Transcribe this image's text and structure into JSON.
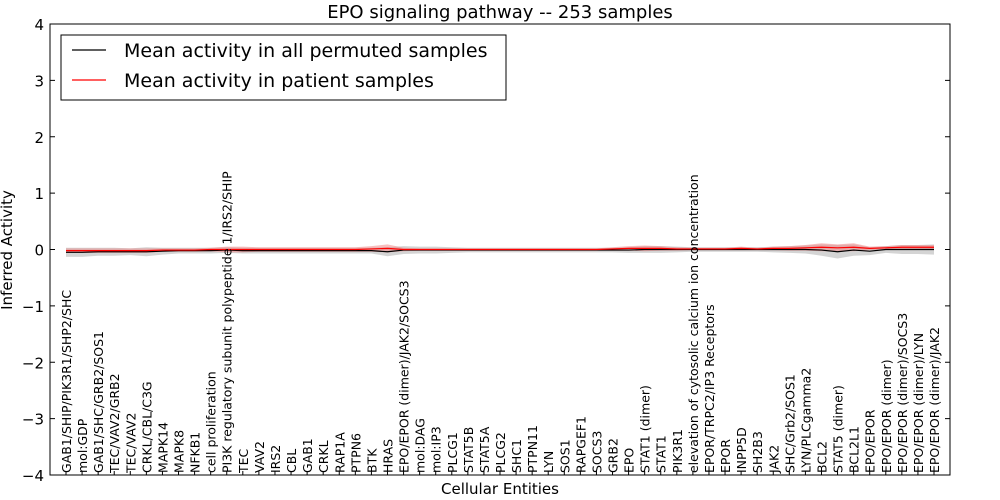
{
  "chart_data": {
    "type": "line",
    "title": "EPO signaling pathway -- 253 samples",
    "xlabel": "Cellular Entities",
    "ylabel": "Inferred Activity",
    "ylim": [
      -4,
      4
    ],
    "yticks": [
      -4,
      -3,
      -2,
      -1,
      0,
      1,
      2,
      3,
      4
    ],
    "ytick_labels": [
      "−4",
      "−3",
      "−2",
      "−1",
      "0",
      "1",
      "2",
      "3",
      "4"
    ],
    "legend_position": "top-left",
    "categories": [
      "GAB1/SHIP/PIK3R1/SHP2/SHC",
      "mol:GDP",
      "GAB1/SHC/GRB2/SOS1",
      "TEC/VAV2/GRB2",
      "TEC/VAV2",
      "CRKL/CBL/C3G",
      "MAPK14",
      "MAPK8",
      "NFKB1",
      "cell proliferation",
      "PI3K regulatory subunit polypeptide 1/IRS2/SHIP",
      "TEC",
      "VAV2",
      "IRS2",
      "CBL",
      "GAB1",
      "CRKL",
      "RAP1A",
      "PTPN6",
      "BTK",
      "HRAS",
      "EPO/EPOR (dimer)/JAK2/SOCS3",
      "mol:DAG",
      "mol:IP3",
      "PLCG1",
      "STAT5B",
      "STAT5A",
      "PLCG2",
      "SHC1",
      "PTPN11",
      "LYN",
      "SOS1",
      "RAPGEF1",
      "SOCS3",
      "GRB2",
      "EPO",
      "STAT1 (dimer)",
      "STAT1",
      "PIK3R1",
      "elevation of cytosolic calcium ion concentration",
      "EPOR/TRPC2/IP3 Receptors",
      "EPOR",
      "INPP5D",
      "SH2B3",
      "JAK2",
      "SHC/Grb2/SOS1",
      "LYN/PLCgamma2",
      "BCL2",
      "STAT5 (dimer)",
      "BCL2L1",
      "EPO/EPOR",
      "EPO/EPOR (dimer)",
      "EPO/EPOR (dimer)/SOCS3",
      "EPO/EPOR (dimer)/LYN",
      "EPO/EPOR (dimer)/JAK2"
    ],
    "series": [
      {
        "name": "Mean activity in all permuted samples",
        "color": "#000000",
        "band_color": "#b0b0b0",
        "values": [
          -0.05,
          -0.05,
          -0.04,
          -0.04,
          -0.04,
          -0.04,
          -0.03,
          -0.02,
          -0.02,
          -0.02,
          -0.01,
          -0.02,
          -0.02,
          -0.02,
          -0.02,
          -0.02,
          -0.02,
          -0.02,
          -0.02,
          -0.02,
          -0.04,
          -0.01,
          -0.01,
          -0.01,
          -0.01,
          -0.01,
          -0.01,
          -0.01,
          -0.01,
          -0.01,
          -0.01,
          -0.01,
          -0.01,
          -0.01,
          -0.01,
          -0.01,
          0.0,
          0.0,
          0.0,
          0.0,
          0.0,
          0.0,
          0.0,
          0.0,
          0.0,
          0.0,
          0.0,
          -0.01,
          -0.04,
          -0.01,
          -0.03,
          0.0,
          0.0,
          0.0,
          0.0
        ],
        "spread": [
          0.08,
          0.08,
          0.07,
          0.07,
          0.06,
          0.08,
          0.06,
          0.05,
          0.05,
          0.05,
          0.05,
          0.05,
          0.05,
          0.05,
          0.05,
          0.05,
          0.05,
          0.05,
          0.05,
          0.05,
          0.08,
          0.07,
          0.06,
          0.06,
          0.05,
          0.04,
          0.04,
          0.04,
          0.04,
          0.04,
          0.04,
          0.04,
          0.04,
          0.04,
          0.04,
          0.05,
          0.06,
          0.06,
          0.05,
          0.04,
          0.04,
          0.04,
          0.04,
          0.04,
          0.05,
          0.06,
          0.07,
          0.1,
          0.12,
          0.1,
          0.07,
          0.06,
          0.08,
          0.08,
          0.09
        ]
      },
      {
        "name": "Mean activity in patient samples",
        "color": "#ff0000",
        "band_color": "#f08080",
        "values": [
          -0.02,
          -0.02,
          -0.02,
          -0.02,
          -0.02,
          -0.02,
          -0.01,
          -0.01,
          -0.01,
          0.0,
          0.0,
          0.0,
          0.0,
          0.0,
          0.0,
          0.0,
          0.0,
          0.0,
          0.0,
          0.01,
          0.02,
          0.0,
          0.0,
          0.0,
          0.0,
          0.0,
          0.0,
          0.0,
          0.0,
          0.0,
          0.0,
          0.0,
          0.0,
          0.0,
          0.01,
          0.02,
          0.02,
          0.02,
          0.01,
          0.01,
          0.01,
          0.01,
          0.02,
          0.01,
          0.02,
          0.02,
          0.03,
          0.04,
          0.03,
          0.04,
          0.02,
          0.03,
          0.04,
          0.04,
          0.04
        ],
        "spread": [
          0.04,
          0.04,
          0.04,
          0.04,
          0.04,
          0.04,
          0.03,
          0.03,
          0.03,
          0.03,
          0.05,
          0.05,
          0.04,
          0.04,
          0.04,
          0.04,
          0.04,
          0.04,
          0.04,
          0.05,
          0.07,
          0.03,
          0.02,
          0.02,
          0.02,
          0.02,
          0.02,
          0.02,
          0.02,
          0.02,
          0.02,
          0.02,
          0.02,
          0.02,
          0.03,
          0.04,
          0.05,
          0.04,
          0.03,
          0.02,
          0.02,
          0.02,
          0.03,
          0.02,
          0.03,
          0.04,
          0.05,
          0.07,
          0.06,
          0.07,
          0.03,
          0.03,
          0.04,
          0.04,
          0.04
        ]
      }
    ]
  }
}
